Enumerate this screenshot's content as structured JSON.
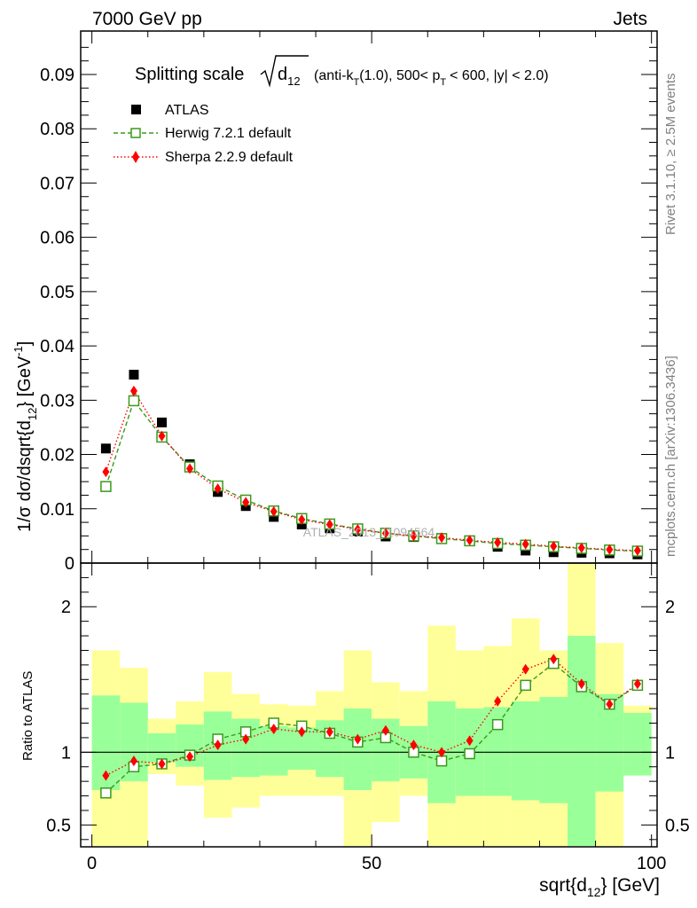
{
  "header": {
    "left": "7000 GeV pp",
    "right": "Jets"
  },
  "side": {
    "rivet": "Rivet 3.1.10, ≥ 2.5M events",
    "mcplots": "mcplots.cern.ch [arXiv:1306.3436]"
  },
  "plot_title": {
    "main": "Splitting scale",
    "sqrt_arg": "d",
    "sqrt_sub": "12",
    "cond_a": "(anti-k",
    "cond_a_sub": "T",
    "cond_b": "(1.0), 500< p",
    "cond_b_sub": "T",
    "cond_c": "< 600, |y| < 2.0)"
  },
  "watermark": "ATLAS_2013_I1094564",
  "axes": {
    "ylabel_main": "1/σ dσ/dsqrt{d",
    "ylabel_sub": "12",
    "ylabel_end": "} [GeV",
    "ylabel_sup": "-1",
    "ylabel_close": "]",
    "ylabel_ratio": "Ratio to ATLAS",
    "xlabel_main": "sqrt{d",
    "xlabel_sub": "12",
    "xlabel_end": "} [GeV]"
  },
  "legend": [
    {
      "label": "ATLAS",
      "color": "#000000",
      "marker": "filled-square"
    },
    {
      "label": "Herwig 7.2.1 default",
      "color": "#3a9a1a",
      "marker": "open-square"
    },
    {
      "label": "Sherpa 2.2.9 default",
      "color": "#ff0000",
      "marker": "diamond"
    }
  ],
  "colors": {
    "herwig": "#3a9a1a",
    "sherpa": "#ff0000",
    "data": "#000000",
    "band_outer": "#ffff99",
    "band_inner": "#99ff99"
  },
  "chart_data": {
    "type": "scatter",
    "x_edges": [
      0,
      5,
      10,
      15,
      20,
      25,
      30,
      35,
      40,
      45,
      50,
      55,
      60,
      65,
      70,
      75,
      80,
      85,
      90,
      95,
      100
    ],
    "x": [
      2.5,
      7.5,
      12.5,
      17.5,
      22.5,
      27.5,
      32.5,
      37.5,
      42.5,
      47.5,
      52.5,
      57.5,
      62.5,
      67.5,
      72.5,
      77.5,
      82.5,
      87.5,
      92.5,
      97.5
    ],
    "xlim": [
      -2,
      101
    ],
    "main": {
      "ylim": [
        0,
        0.098
      ],
      "yticks": [
        0,
        0.01,
        0.02,
        0.03,
        0.04,
        0.05,
        0.06,
        0.07,
        0.08,
        0.09
      ],
      "ytick_labels": [
        "0",
        "0.01",
        "0.02",
        "0.03",
        "0.04",
        "0.05",
        "0.06",
        "0.07",
        "0.08",
        "0.09"
      ],
      "series": [
        {
          "name": "ATLAS",
          "values": [
            0.0211,
            0.0347,
            0.0259,
            0.0182,
            0.0131,
            0.0105,
            0.0085,
            0.0071,
            0.0064,
            0.0058,
            0.0049,
            0.0048,
            0.0046,
            0.004,
            0.003,
            0.0023,
            0.002,
            0.0019,
            0.0018,
            0.0016
          ]
        },
        {
          "name": "Herwig 7.2.1 default",
          "values": [
            0.0141,
            0.0299,
            0.0232,
            0.0177,
            0.0142,
            0.0116,
            0.0096,
            0.0082,
            0.0072,
            0.0063,
            0.0055,
            0.005,
            0.0045,
            0.0041,
            0.0036,
            0.0033,
            0.003,
            0.0027,
            0.0024,
            0.0022
          ]
        },
        {
          "name": "Sherpa 2.2.9 default",
          "values": [
            0.0168,
            0.0317,
            0.0234,
            0.0174,
            0.0137,
            0.0112,
            0.0095,
            0.008,
            0.0071,
            0.0062,
            0.0055,
            0.005,
            0.0047,
            0.0042,
            0.0038,
            0.0035,
            0.0031,
            0.0028,
            0.0025,
            0.0023
          ]
        }
      ]
    },
    "ratio": {
      "ylim": [
        0.35,
        2.3
      ],
      "yticks": [
        0.5,
        1,
        2
      ],
      "ytick_labels": [
        "0.5",
        "1",
        "2"
      ],
      "band_outer_low": [
        0.35,
        0.35,
        0.85,
        0.77,
        0.55,
        0.62,
        0.7,
        0.7,
        0.7,
        0.35,
        0.52,
        0.7,
        0.35,
        0.35,
        0.35,
        0.35,
        0.35,
        0.35,
        0.35,
        0.84
      ],
      "band_outer_high": [
        1.7,
        1.58,
        1.23,
        1.35,
        1.55,
        1.4,
        1.33,
        1.32,
        1.42,
        1.7,
        1.48,
        1.42,
        1.87,
        1.7,
        1.73,
        1.92,
        1.7,
        2.3,
        1.75,
        1.32
      ],
      "band_inner_low": [
        0.74,
        0.8,
        0.93,
        0.9,
        0.81,
        0.83,
        0.84,
        0.88,
        0.83,
        0.74,
        0.8,
        0.82,
        0.65,
        0.7,
        0.7,
        0.67,
        0.65,
        0.35,
        0.73,
        0.84
      ],
      "band_inner_high": [
        1.39,
        1.34,
        1.13,
        1.19,
        1.28,
        1.23,
        1.18,
        1.17,
        1.22,
        1.3,
        1.23,
        1.18,
        1.35,
        1.3,
        1.31,
        1.35,
        1.38,
        1.8,
        1.4,
        1.27
      ],
      "series": [
        {
          "name": "Herwig 7.2.1 default",
          "values": [
            0.72,
            0.9,
            0.92,
            0.98,
            1.09,
            1.14,
            1.2,
            1.18,
            1.13,
            1.07,
            1.1,
            1.0,
            0.94,
            0.99,
            1.19,
            1.46,
            1.61,
            1.45,
            1.33,
            1.46
          ]
        },
        {
          "name": "Sherpa 2.2.9 default",
          "values": [
            0.84,
            0.94,
            0.92,
            0.97,
            1.05,
            1.09,
            1.16,
            1.14,
            1.14,
            1.09,
            1.15,
            1.05,
            1.0,
            1.08,
            1.35,
            1.57,
            1.64,
            1.47,
            1.33,
            1.47
          ]
        }
      ]
    },
    "xticks": [
      0,
      50,
      100
    ],
    "xtick_labels": [
      "0",
      "50",
      "100"
    ]
  }
}
